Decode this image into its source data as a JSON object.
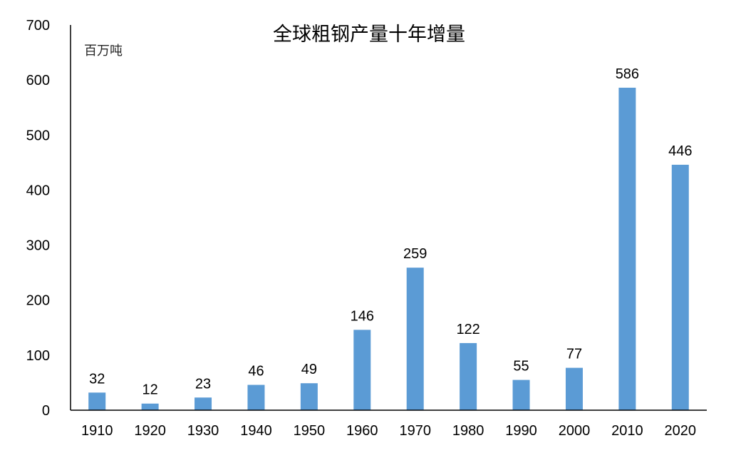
{
  "chart_data": {
    "type": "bar",
    "title": "全球粗钢产量十年增量",
    "unit": "百万吨",
    "categories": [
      "1910",
      "1920",
      "1930",
      "1940",
      "1950",
      "1960",
      "1970",
      "1980",
      "1990",
      "2000",
      "2010",
      "2020"
    ],
    "values": [
      32,
      12,
      23,
      46,
      49,
      146,
      259,
      122,
      55,
      77,
      586,
      446
    ],
    "data_labels": [
      "32",
      "12",
      "23",
      "46",
      "49",
      "146",
      "259",
      "122",
      "55",
      "77",
      "586",
      "446"
    ],
    "yticks": [
      "0",
      "100",
      "200",
      "300",
      "400",
      "500",
      "600",
      "700"
    ],
    "ylim": [
      0,
      700
    ],
    "grid": false,
    "legend": "none",
    "bar_color": "#5b9bd5"
  }
}
